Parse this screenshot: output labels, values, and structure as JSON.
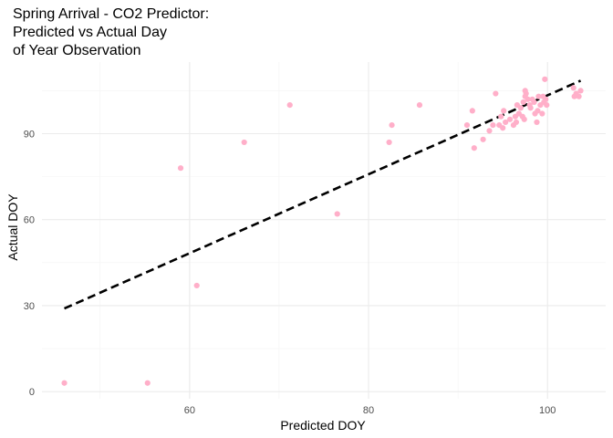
{
  "chart_data": {
    "type": "scatter",
    "title": [
      "Spring Arrival - CO2 Predictor:",
      "Predicted vs Actual Day",
      "of Year Observation"
    ],
    "xlabel": "Predicted DOY",
    "ylabel": "Actual DOY",
    "xlim": [
      43.5,
      106.5
    ],
    "ylim": [
      -2.5,
      115
    ],
    "x_ticks": [
      60,
      80,
      100
    ],
    "x_tick_labels": [
      "60",
      "80",
      "100"
    ],
    "x_minor_ticks": [
      50,
      70,
      90
    ],
    "y_ticks": [
      0,
      30,
      60,
      90
    ],
    "y_tick_labels": [
      "0",
      "30",
      "60",
      "90"
    ],
    "y_minor_ticks": [
      15,
      45,
      75,
      105
    ],
    "grid": true,
    "point_color": "#ffafc9",
    "fit_line": {
      "x": [
        46,
        103.7
      ],
      "y": [
        29,
        108.5
      ],
      "style": "dashed",
      "color": "#000000"
    },
    "points": [
      {
        "x": 46,
        "y": 3
      },
      {
        "x": 55.3,
        "y": 3
      },
      {
        "x": 59,
        "y": 78
      },
      {
        "x": 60.8,
        "y": 37
      },
      {
        "x": 66.1,
        "y": 87
      },
      {
        "x": 71.2,
        "y": 100
      },
      {
        "x": 76.5,
        "y": 62
      },
      {
        "x": 82.3,
        "y": 87
      },
      {
        "x": 82.6,
        "y": 93
      },
      {
        "x": 85.7,
        "y": 100
      },
      {
        "x": 91,
        "y": 93
      },
      {
        "x": 91.6,
        "y": 98
      },
      {
        "x": 91.8,
        "y": 85
      },
      {
        "x": 92.8,
        "y": 88
      },
      {
        "x": 93.5,
        "y": 91
      },
      {
        "x": 93.9,
        "y": 93
      },
      {
        "x": 94.2,
        "y": 104
      },
      {
        "x": 94.6,
        "y": 93
      },
      {
        "x": 94.8,
        "y": 96
      },
      {
        "x": 95,
        "y": 92
      },
      {
        "x": 95.1,
        "y": 98
      },
      {
        "x": 95.3,
        "y": 94
      },
      {
        "x": 95.8,
        "y": 95
      },
      {
        "x": 96.2,
        "y": 93
      },
      {
        "x": 96.4,
        "y": 96
      },
      {
        "x": 96.5,
        "y": 94
      },
      {
        "x": 96.6,
        "y": 100
      },
      {
        "x": 96.8,
        "y": 97
      },
      {
        "x": 97,
        "y": 99
      },
      {
        "x": 97.2,
        "y": 96
      },
      {
        "x": 97.3,
        "y": 101
      },
      {
        "x": 97.4,
        "y": 95
      },
      {
        "x": 97.5,
        "y": 103
      },
      {
        "x": 97.5,
        "y": 105
      },
      {
        "x": 97.6,
        "y": 104
      },
      {
        "x": 97.8,
        "y": 102
      },
      {
        "x": 98,
        "y": 100
      },
      {
        "x": 98.1,
        "y": 99
      },
      {
        "x": 98.3,
        "y": 102
      },
      {
        "x": 98.5,
        "y": 101
      },
      {
        "x": 98.6,
        "y": 97
      },
      {
        "x": 98.8,
        "y": 94
      },
      {
        "x": 98.9,
        "y": 98
      },
      {
        "x": 99,
        "y": 103
      },
      {
        "x": 99.2,
        "y": 100
      },
      {
        "x": 99.4,
        "y": 97
      },
      {
        "x": 99.5,
        "y": 103
      },
      {
        "x": 99.6,
        "y": 101
      },
      {
        "x": 99.8,
        "y": 102
      },
      {
        "x": 99.9,
        "y": 100
      },
      {
        "x": 99.7,
        "y": 109
      },
      {
        "x": 102.9,
        "y": 106
      },
      {
        "x": 103,
        "y": 103
      },
      {
        "x": 103.2,
        "y": 104
      },
      {
        "x": 103.5,
        "y": 103
      },
      {
        "x": 103.7,
        "y": 105
      }
    ]
  }
}
